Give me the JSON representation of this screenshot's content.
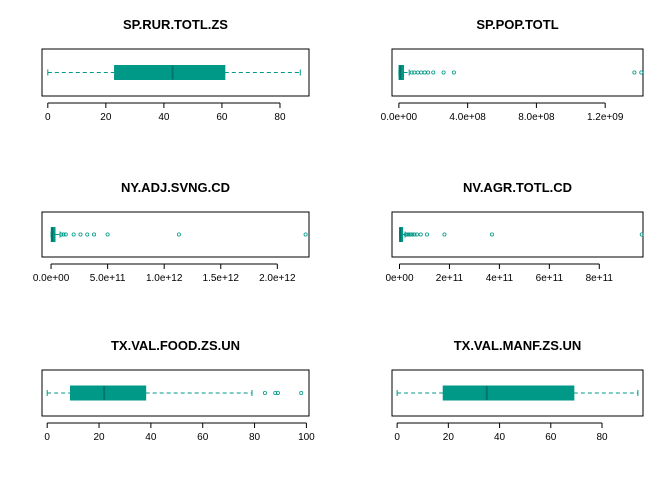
{
  "color": "#009988",
  "chart_data": [
    {
      "type": "boxplot",
      "orientation": "horizontal",
      "title": "SP.RUR.TOTL.ZS",
      "xlim": [
        -2,
        90
      ],
      "ticks": [
        0,
        20,
        40,
        60,
        80
      ],
      "tick_labels": [
        "0",
        "20",
        "40",
        "60",
        "80"
      ],
      "min": 0,
      "q1": 23,
      "median": 43,
      "q3": 61,
      "max": 87,
      "outliers": []
    },
    {
      "type": "boxplot",
      "orientation": "horizontal",
      "title": "SP.POP.TOTL",
      "xlim": [
        -40000000,
        1420000000
      ],
      "ticks": [
        0,
        400000000,
        800000000,
        1200000000
      ],
      "tick_labels": [
        "0.0e+00",
        "4.0e+08",
        "8.0e+08",
        "1.2e+09"
      ],
      "min": 0,
      "q1": 1000000,
      "median": 8000000,
      "q3": 27000000,
      "max": 60000000,
      "outliers": [
        75000000,
        90000000,
        110000000,
        130000000,
        150000000,
        170000000,
        200000000,
        260000000,
        320000000,
        1370000000,
        1410000000
      ]
    },
    {
      "type": "boxplot",
      "orientation": "horizontal",
      "title": "NY.ADJ.SVNG.CD",
      "xlim": [
        -80000000000,
        2280000000000
      ],
      "ticks": [
        0,
        500000000000,
        1000000000000,
        1500000000000,
        2000000000000
      ],
      "tick_labels": [
        "0.0e+00",
        "5.0e+11",
        "1.0e+12",
        "1.5e+12",
        "2.0e+12"
      ],
      "min": 0,
      "q1": 2000000000,
      "median": 10000000000,
      "q3": 35000000000,
      "max": 80000000000,
      "outliers": [
        90000000000,
        110000000000,
        130000000000,
        200000000000,
        260000000000,
        320000000000,
        380000000000,
        500000000000,
        1130000000000,
        2250000000000
      ]
    },
    {
      "type": "boxplot",
      "orientation": "horizontal",
      "title": "NV.AGR.TOTL.CD",
      "xlim": [
        -30000000000,
        975000000000
      ],
      "ticks": [
        0,
        200000000000,
        400000000000,
        600000000000,
        800000000000
      ],
      "tick_labels": [
        "0e+00",
        "2e+11",
        "4e+11",
        "6e+11",
        "8e+11"
      ],
      "min": 0,
      "q1": 500000000,
      "median": 3000000000,
      "q3": 10000000000,
      "max": 22000000000,
      "outliers": [
        26000000000,
        30000000000,
        35000000000,
        40000000000,
        45000000000,
        52000000000,
        60000000000,
        70000000000,
        85000000000,
        110000000000,
        180000000000,
        370000000000,
        970000000000
      ]
    },
    {
      "type": "boxplot",
      "orientation": "horizontal",
      "title": "TX.VAL.FOOD.ZS.UN",
      "xlim": [
        -2,
        101
      ],
      "ticks": [
        0,
        20,
        40,
        60,
        80,
        100
      ],
      "tick_labels": [
        "0",
        "20",
        "40",
        "60",
        "80",
        "100"
      ],
      "min": 0,
      "q1": 9,
      "median": 22,
      "q3": 38,
      "max": 79,
      "outliers": [
        84,
        88,
        89,
        98
      ]
    },
    {
      "type": "boxplot",
      "orientation": "horizontal",
      "title": "TX.VAL.MANF.ZS.UN",
      "xlim": [
        -2,
        96
      ],
      "ticks": [
        0,
        20,
        40,
        60,
        80
      ],
      "tick_labels": [
        "0",
        "20",
        "40",
        "60",
        "80"
      ],
      "min": 0,
      "q1": 18,
      "median": 35,
      "q3": 69,
      "max": 94,
      "outliers": []
    }
  ]
}
